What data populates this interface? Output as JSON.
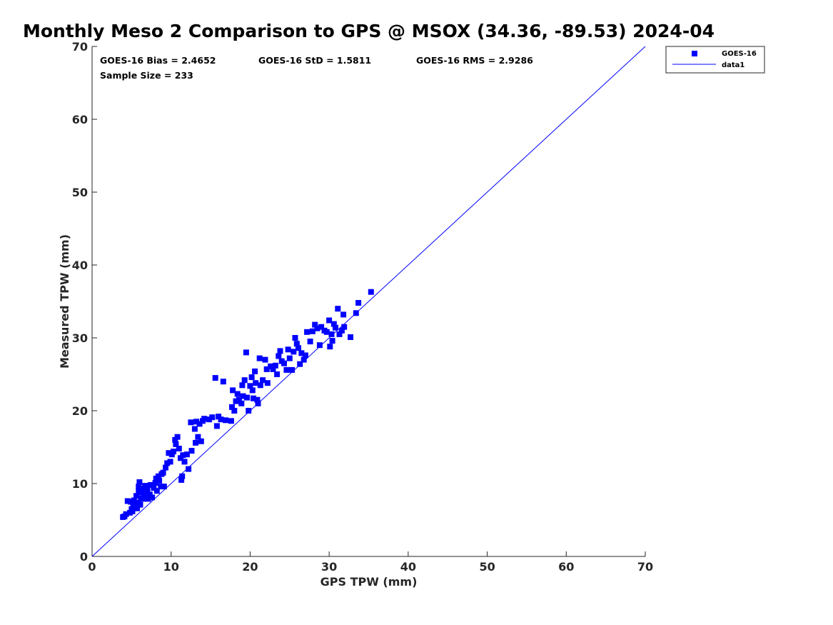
{
  "chart_data": {
    "type": "scatter",
    "title": "Monthly Meso 2 Comparison to GPS @ MSOX (34.36, -89.53) 2024-04",
    "xlabel": "GPS TPW (mm)",
    "ylabel": "Measured TPW (mm)",
    "xlim": [
      0,
      70
    ],
    "ylim": [
      0,
      70
    ],
    "xticks": [
      "0",
      "10",
      "20",
      "30",
      "40",
      "50",
      "60",
      "70"
    ],
    "yticks": [
      "0",
      "10",
      "20",
      "30",
      "40",
      "50",
      "60",
      "70"
    ],
    "grid": false,
    "legend_position": "top-right",
    "marker_color": "#0000ff",
    "line_color": "#0000ff",
    "stats": {
      "bias": "GOES-16 Bias = 2.4652",
      "std": "GOES-16 StD = 1.5811",
      "rms": "GOES-16 RMS = 2.9286",
      "sample": "Sample Size = 233"
    },
    "series": [
      {
        "name": "GOES-16",
        "marker": "square",
        "points": [
          [
            3.9,
            5.4
          ],
          [
            4.1,
            5.5
          ],
          [
            4.3,
            5.8
          ],
          [
            4.5,
            7.6
          ],
          [
            4.8,
            6.0
          ],
          [
            4.9,
            7.5
          ],
          [
            5.0,
            6.5
          ],
          [
            5.1,
            6.2
          ],
          [
            5.2,
            7.0
          ],
          [
            5.3,
            7.7
          ],
          [
            5.4,
            6.8
          ],
          [
            5.5,
            7.2
          ],
          [
            5.6,
            8.3
          ],
          [
            5.7,
            6.6
          ],
          [
            5.8,
            7.4
          ],
          [
            5.9,
            9.0
          ],
          [
            5.9,
            9.6
          ],
          [
            6.0,
            10.2
          ],
          [
            6.1,
            7.1
          ],
          [
            6.2,
            8.0
          ],
          [
            6.3,
            8.8
          ],
          [
            6.4,
            7.9
          ],
          [
            6.5,
            9.3
          ],
          [
            6.6,
            8.4
          ],
          [
            6.7,
            9.7
          ],
          [
            6.8,
            8.7
          ],
          [
            7.0,
            9.1
          ],
          [
            7.1,
            7.9
          ],
          [
            7.3,
            8.5
          ],
          [
            7.4,
            9.8
          ],
          [
            7.6,
            8.1
          ],
          [
            7.8,
            9.4
          ],
          [
            8.0,
            10.1
          ],
          [
            8.1,
            10.7
          ],
          [
            8.2,
            9.0
          ],
          [
            8.4,
            11.0
          ],
          [
            8.5,
            10.4
          ],
          [
            8.7,
            9.6
          ],
          [
            8.8,
            11.3
          ],
          [
            9.0,
            11.5
          ],
          [
            9.1,
            9.6
          ],
          [
            9.3,
            12.2
          ],
          [
            9.5,
            12.8
          ],
          [
            9.7,
            14.2
          ],
          [
            9.9,
            13.0
          ],
          [
            10.1,
            14.0
          ],
          [
            10.3,
            14.4
          ],
          [
            10.5,
            16.0
          ],
          [
            10.6,
            15.4
          ],
          [
            10.8,
            16.4
          ],
          [
            11.0,
            14.8
          ],
          [
            11.2,
            13.5
          ],
          [
            11.3,
            10.5
          ],
          [
            11.4,
            11.0
          ],
          [
            11.5,
            13.9
          ],
          [
            11.7,
            13.0
          ],
          [
            12.0,
            14.0
          ],
          [
            12.2,
            12.0
          ],
          [
            12.5,
            18.4
          ],
          [
            12.6,
            14.5
          ],
          [
            13.0,
            17.5
          ],
          [
            13.1,
            15.6
          ],
          [
            13.2,
            18.5
          ],
          [
            13.4,
            16.4
          ],
          [
            13.6,
            18.2
          ],
          [
            13.8,
            15.8
          ],
          [
            14.0,
            18.6
          ],
          [
            14.2,
            18.9
          ],
          [
            14.8,
            18.8
          ],
          [
            15.2,
            19.1
          ],
          [
            15.6,
            24.5
          ],
          [
            15.8,
            17.9
          ],
          [
            16.0,
            19.2
          ],
          [
            16.3,
            18.8
          ],
          [
            16.6,
            24.0
          ],
          [
            16.9,
            18.7
          ],
          [
            17.6,
            18.6
          ],
          [
            17.7,
            20.5
          ],
          [
            17.8,
            22.8
          ],
          [
            18.0,
            20.0
          ],
          [
            18.2,
            21.3
          ],
          [
            18.4,
            22.3
          ],
          [
            18.6,
            21.5
          ],
          [
            18.9,
            21.0
          ],
          [
            19.0,
            23.5
          ],
          [
            19.1,
            22.0
          ],
          [
            19.3,
            24.2
          ],
          [
            19.5,
            28.0
          ],
          [
            19.6,
            21.8
          ],
          [
            19.8,
            20.0
          ],
          [
            20.0,
            23.4
          ],
          [
            20.2,
            24.6
          ],
          [
            20.3,
            22.8
          ],
          [
            20.4,
            21.7
          ],
          [
            20.6,
            25.4
          ],
          [
            20.7,
            23.8
          ],
          [
            20.9,
            21.5
          ],
          [
            21.0,
            21.0
          ],
          [
            21.2,
            27.2
          ],
          [
            21.3,
            23.5
          ],
          [
            21.6,
            24.2
          ],
          [
            21.9,
            27.0
          ],
          [
            22.1,
            25.7
          ],
          [
            22.2,
            23.8
          ],
          [
            22.6,
            26.1
          ],
          [
            22.9,
            25.7
          ],
          [
            23.2,
            26.2
          ],
          [
            23.4,
            25.0
          ],
          [
            23.6,
            27.5
          ],
          [
            23.8,
            28.2
          ],
          [
            24.0,
            26.8
          ],
          [
            24.3,
            26.5
          ],
          [
            24.6,
            25.6
          ],
          [
            24.8,
            28.4
          ],
          [
            25.0,
            27.2
          ],
          [
            25.3,
            25.6
          ],
          [
            25.5,
            28.1
          ],
          [
            25.7,
            30.0
          ],
          [
            25.9,
            29.2
          ],
          [
            26.1,
            28.6
          ],
          [
            26.3,
            26.4
          ],
          [
            26.5,
            27.9
          ],
          [
            26.8,
            27.0
          ],
          [
            27.0,
            27.6
          ],
          [
            27.2,
            30.8
          ],
          [
            27.6,
            29.5
          ],
          [
            27.9,
            30.9
          ],
          [
            28.2,
            31.8
          ],
          [
            28.5,
            31.3
          ],
          [
            28.8,
            29.0
          ],
          [
            29.0,
            31.5
          ],
          [
            29.4,
            31.0
          ],
          [
            29.7,
            30.8
          ],
          [
            30.0,
            32.4
          ],
          [
            30.1,
            28.8
          ],
          [
            30.3,
            30.5
          ],
          [
            30.4,
            29.6
          ],
          [
            30.6,
            31.9
          ],
          [
            30.8,
            31.4
          ],
          [
            31.1,
            34.0
          ],
          [
            31.3,
            30.5
          ],
          [
            31.6,
            31.0
          ],
          [
            31.8,
            33.2
          ],
          [
            31.9,
            31.5
          ],
          [
            32.7,
            30.1
          ],
          [
            33.4,
            33.4
          ],
          [
            33.7,
            34.8
          ],
          [
            35.3,
            36.3
          ]
        ]
      },
      {
        "name": "data1",
        "type": "line",
        "points": [
          [
            0,
            0
          ],
          [
            70,
            70
          ]
        ]
      }
    ]
  }
}
